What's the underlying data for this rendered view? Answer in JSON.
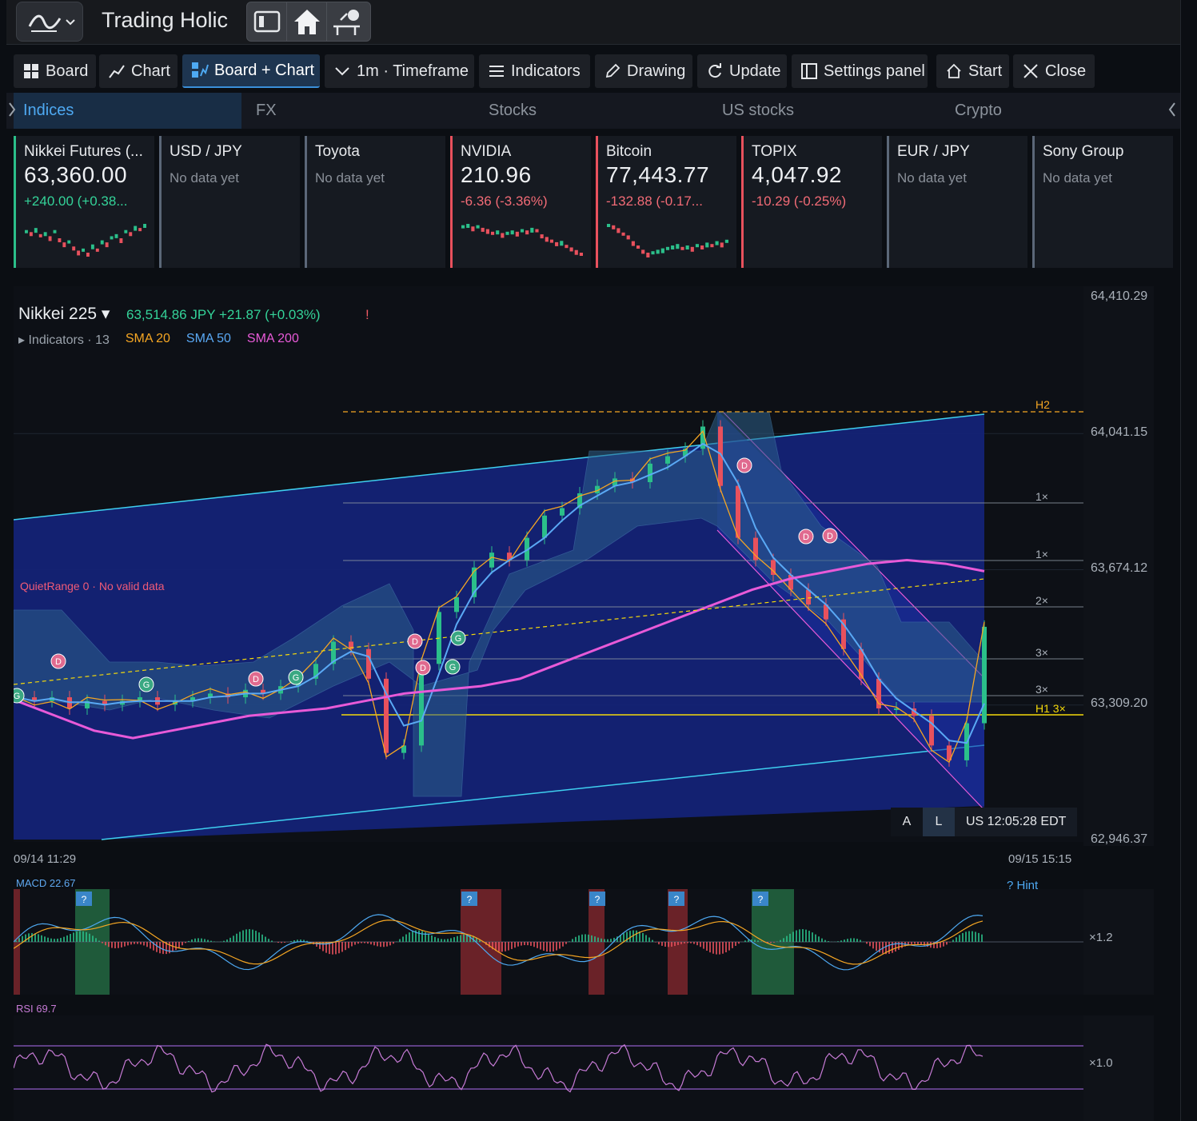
{
  "app": {
    "title": "Trading Holic"
  },
  "toolbar": {
    "board": "Board",
    "chart": "Chart",
    "board_chart": "Board + Chart",
    "timeframe": "1m · Timeframe",
    "indicators": "Indicators",
    "drawing": "Drawing",
    "update": "Update",
    "settings_panel": "Settings panel",
    "start": "Start",
    "close": "Close"
  },
  "tabs": [
    "Indices",
    "FX",
    "Stocks",
    "US stocks",
    "Crypto"
  ],
  "cards": [
    {
      "name": "Nikkei Futures (...",
      "price": "63,360.00",
      "change": "+240.00  (+0.38...",
      "dir": "up",
      "spark": [
        5,
        6,
        4,
        7,
        6,
        8,
        5,
        9,
        11,
        10,
        13,
        15,
        14,
        16,
        12,
        14,
        10,
        11,
        8,
        7,
        9,
        5,
        6,
        3,
        4,
        2
      ]
    },
    {
      "name": "USD / JPY",
      "nodata": "No data yet",
      "dir": "neutral"
    },
    {
      "name": "Toyota",
      "nodata": "No data yet",
      "dir": "neutral"
    },
    {
      "name": "NVIDIA",
      "price": "210.96",
      "change": "-6.36  (-3.36%)",
      "dir": "down",
      "spark": [
        3,
        2,
        4,
        3,
        5,
        6,
        8,
        7,
        9,
        8,
        7,
        8,
        6,
        7,
        5,
        6,
        10,
        12,
        14,
        16,
        15,
        18,
        20,
        22,
        24
      ]
    },
    {
      "name": "Bitcoin",
      "price": "77,443.77",
      "change": "-132.88  (-0.17...",
      "dir": "down",
      "spark": [
        2,
        3,
        5,
        8,
        10,
        14,
        17,
        20,
        22,
        21,
        20,
        19,
        18,
        17,
        16,
        18,
        17,
        18,
        16,
        17,
        15,
        16,
        14,
        15,
        13
      ]
    },
    {
      "name": "TOPIX",
      "price": "4,047.92",
      "change": "-10.29  (-0.25%)",
      "dir": "down"
    },
    {
      "name": "EUR / JPY",
      "nodata": "No data yet",
      "dir": "neutral"
    },
    {
      "name": "Sony Group",
      "nodata": "No data yet",
      "dir": "neutral"
    }
  ],
  "chart": {
    "symbol": "Nikkei 225 ▾",
    "quote": "63,514.86 JPY  +21.87  (+0.03%)",
    "alert": "!",
    "indicators_label": "▸ Indicators · 13",
    "sma20": "SMA 20",
    "sma50": "SMA 50",
    "sma200": "SMA 200",
    "quiet_range": "QuietRange 0 · No valid data",
    "time_start": "09/14 11:29",
    "time_end": "09/15 15:15",
    "clock": "US 12:05:28 EDT",
    "btn_a": "A",
    "btn_l": "L",
    "levels": {
      "h2": "H2",
      "x1a": "1×",
      "x1b": "1×",
      "x2": "2×",
      "x3a": "3×",
      "x3b": "3×",
      "h1": "H1 3×"
    },
    "colors": {
      "sma20": "#f5a623",
      "sma50": "#5aa9f5",
      "sma200": "#e85ad8",
      "channel": "#3fd0f0",
      "fill": "#14237a"
    }
  },
  "chart_data": {
    "type": "line",
    "title": "Nikkei 225",
    "ylim": [
      62946.37,
      64410.29
    ],
    "yticks": [
      "64,410.29",
      "64,041.15",
      "63,674.12",
      "63,309.20",
      "62,946.37"
    ],
    "x_range": [
      "09/14 11:29",
      "09/15 15:15"
    ],
    "series": [
      {
        "name": "Nikkei 225",
        "values": [
          63330,
          63320,
          63330,
          63300,
          63320,
          63310,
          63320,
          63330,
          63310,
          63320,
          63330,
          63340,
          63330,
          63350,
          63340,
          63360,
          63380,
          63420,
          63480,
          63460,
          63380,
          63180,
          63200,
          63420,
          63560,
          63600,
          63680,
          63720,
          63700,
          63760,
          63820,
          63840,
          63880,
          63900,
          63920,
          63910,
          63960,
          63980,
          64000,
          64060,
          63900,
          63760,
          63700,
          63660,
          63620,
          63580,
          63540,
          63460,
          63380,
          63300,
          63300,
          63280,
          63200,
          63160,
          63260,
          63520
        ]
      },
      {
        "name": "SMA 200",
        "values": [
          63320,
          63280,
          63240,
          63220,
          63240,
          63260,
          63280,
          63290,
          63300,
          63320,
          63340,
          63350,
          63360,
          63380,
          63420,
          63460,
          63500,
          63540,
          63580,
          63620,
          63650,
          63670,
          63690,
          63700,
          63690,
          63670
        ]
      }
    ]
  },
  "macd": {
    "label": "MACD 22.67",
    "hint": "? Hint",
    "scale": "×1.2",
    "signal_marker": "?"
  },
  "rsi": {
    "label": "RSI 69.7",
    "scale": "×1.0"
  }
}
